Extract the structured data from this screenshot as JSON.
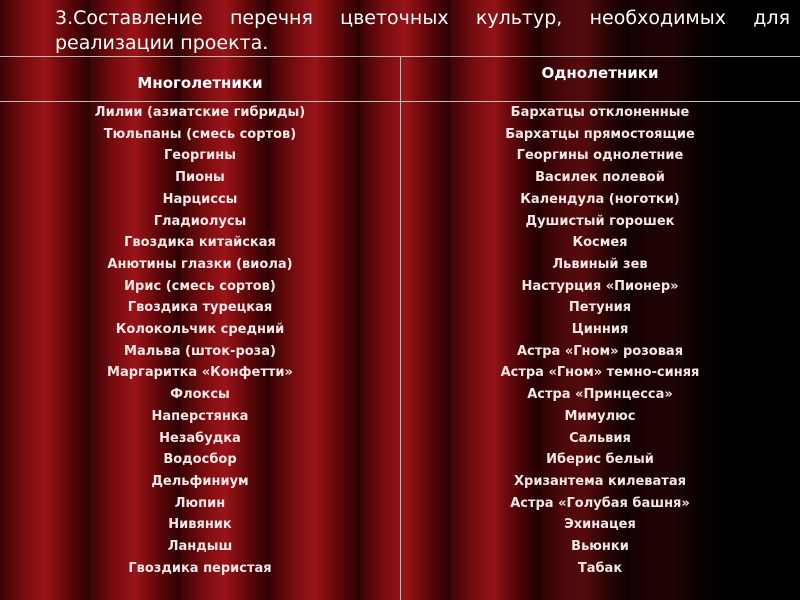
{
  "header": {
    "title": "3.Составление перечня цветочных культур, необходимых для реализации проекта."
  },
  "table": {
    "columns": [
      "Многолетники",
      "Однолетники"
    ],
    "perennials": [
      "Лилии (азиатские гибриды)",
      "Тюльпаны (смесь сортов)",
      "Георгины",
      "Пионы",
      "Нарциссы",
      "Гладиолусы",
      "Гвоздика китайская",
      "Анютины глазки (виола)",
      "Ирис (смесь сортов)",
      "Гвоздика турецкая",
      "Колокольчик средний",
      "Мальва (шток-роза)",
      "Маргаритка «Конфетти»",
      "Флоксы",
      "Наперстянка",
      "Незабудка",
      "Водосбор",
      "Дельфиниум",
      "Люпин",
      "Нивяник",
      "Ландыш",
      "Гвоздика перистая"
    ],
    "annuals": [
      "Бархатцы отклоненные",
      "Бархатцы прямостоящие",
      "Георгины однолетние",
      "Василек полевой",
      "Календула (ноготки)",
      "Душистый горошек",
      "Космея",
      "Львиный зев",
      "Настурция «Пионер»",
      "Петуния",
      "Цинния",
      "Астра «Гном» розовая",
      "Астра «Гном» темно-синяя",
      "Астра «Принцесса»",
      "Мимулюс",
      "Сальвия",
      "Иберис белый",
      "Хризантема килеватая",
      "Астра «Голубая башня»",
      "Эхинацея",
      "Вьюнки",
      "Табак"
    ]
  }
}
